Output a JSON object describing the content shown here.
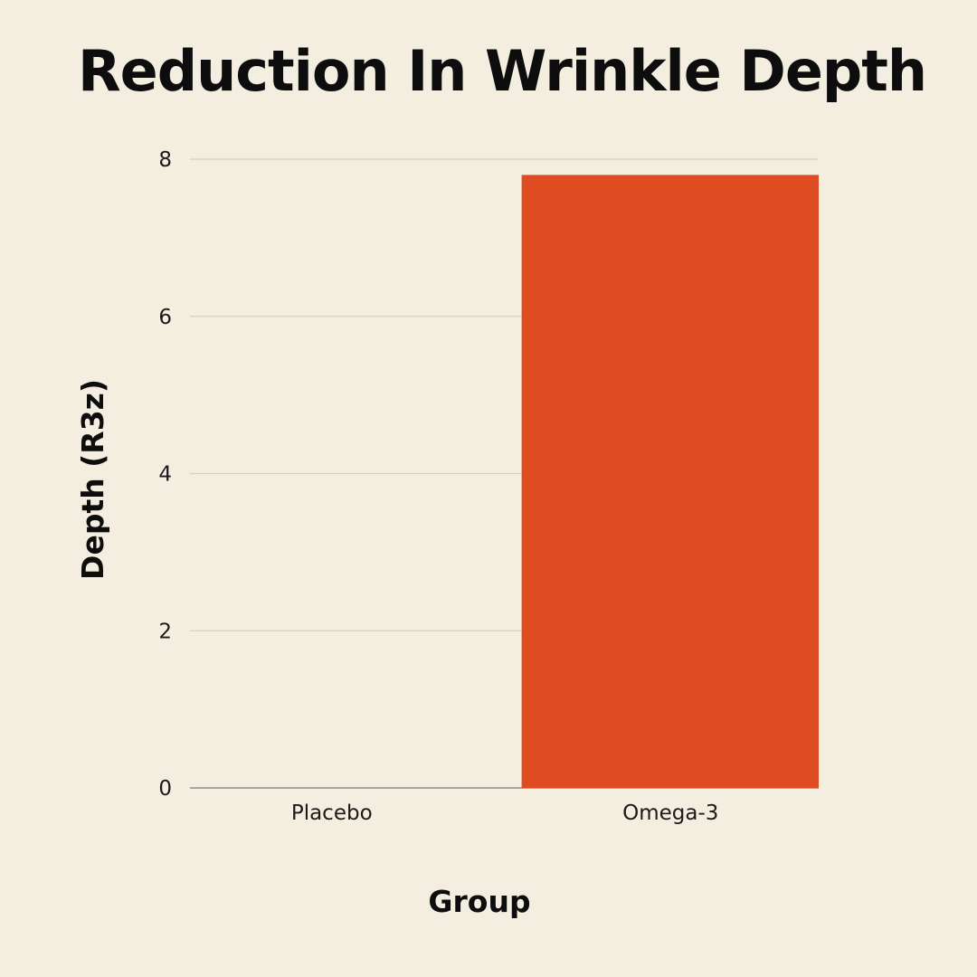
{
  "chart_data": {
    "type": "bar",
    "title": "Reduction In Wrinkle Depth",
    "xlabel": "Group",
    "ylabel": "Depth (R3z)",
    "categories": [
      "Placebo",
      "Omega-3"
    ],
    "values": [
      0,
      7.8
    ],
    "ylim": [
      0,
      8
    ],
    "yticks": [
      "0",
      "2",
      "4",
      "6",
      "8"
    ],
    "grid": true,
    "legend": "none",
    "colors": {
      "bar": "#e04c22",
      "background": "#f4eee0",
      "gridline": "#d6d0c2",
      "baseline": "#8f8b82"
    }
  }
}
